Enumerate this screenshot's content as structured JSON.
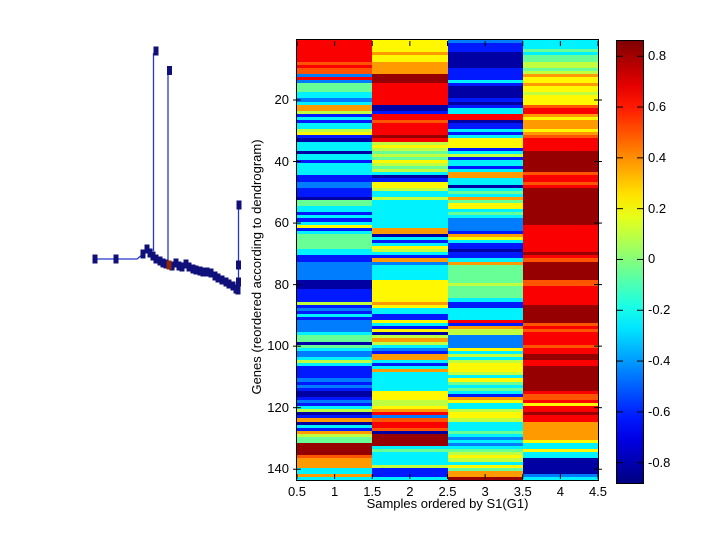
{
  "chart_data": {
    "type": "heatmap",
    "heatmap": {
      "xlabel": "Samples ordered by S1(G1)",
      "ylabel": "Genes (reordered according to dendrogram)",
      "x_ticks": [
        0.5,
        1,
        1.5,
        2,
        2.5,
        3,
        3.5,
        4,
        4.5
      ],
      "y_ticks": [
        20,
        40,
        60,
        80,
        100,
        120,
        140
      ],
      "n_rows": 143,
      "n_cols": 4,
      "colormap": "jet",
      "grid": false,
      "palette_codes": {
        "a": 0.82,
        "b": 0.65,
        "c": 0.5,
        "d": 0.38,
        "e": 0.22,
        "f": 0.1,
        "g": -0.05,
        "h": -0.25,
        "i": -0.45,
        "j": -0.62,
        "k": -0.82
      },
      "rows": [
        "beih",
        "bejh",
        "bejh",
        "bejg",
        "bdkh",
        "bekg",
        "bekg",
        "cdkf",
        "bdkf",
        "cdjg",
        "cdjf",
        "iajd",
        "baje",
        "iahe",
        "gbjd",
        "gbke",
        "gbke",
        "hbkf",
        "hbke",
        "ibje",
        "hbke",
        "dkjc",
        "dkhb",
        "fjhb",
        "jbbd",
        "hbbe",
        "jckd",
        "hbjd",
        "hbjd",
        "fbhe",
        "ebjd",
        "jahc",
        "kbeb",
        "hfeb",
        "heeb",
        "hfjb",
        "kgha",
        "hffa",
        "hgja",
        "jeha",
        "hfha",
        "hgja",
        "hfha",
        "hhdc",
        "jkdb",
        "jjhb",
        "iehc",
        "iekb",
        "jfha",
        "jhga",
        "jhha",
        "kfda",
        "ghga",
        "ghea",
        "hhea",
        "hhha",
        "jhga",
        "hhha",
        "jhia",
        "hhia",
        "ehib",
        "jdib",
        "hdjb",
        "gkdb",
        "gheb",
        "gjhb",
        "ghjb",
        "gejb",
        "hfkb",
        "hhja",
        "jjjb",
        "jdhc",
        "iida",
        "ihga",
        "ihga",
        "ihga",
        "ihga",
        "ihga",
        "kegc",
        "kefc",
        "kegb",
        "jegb",
        "jegb",
        "jegb",
        "jehb",
        "fdjb",
        "jeja",
        "ihha",
        "jhha",
        "hjha",
        "jjha",
        "ieba",
        "ihjc",
        "ijdb",
        "iefc",
        "hkfb",
        "gfib",
        "gdib",
        "kfib",
        "ghic",
        "hieb",
        "ijhb",
        "idfa",
        "hdha",
        "fhfb",
        "hjeb",
        "jhea",
        "jdea",
        "jhfa",
        "jhha",
        "ihea",
        "jhga",
        "ihha",
        "jhga",
        "kehb",
        "kejc",
        "jedc",
        "ifeb",
        "jfhe",
        "hehb",
        "fdfb",
        "kbea",
        "jieb",
        "dcfb",
        "kbhd",
        "hbhd",
        "jchd",
        "dkgd",
        "fahd",
        "gaid",
        "gahe",
        "aaih",
        "ahhh",
        "agge",
        "ahfh",
        "cheh",
        "dhfk",
        "dhhk",
        "dfek",
        "hjgk",
        "hjdk",
        "djdi",
        "hhah"
      ]
    },
    "colorbar": {
      "ticks": [
        0.8,
        0.6,
        0.4,
        0.2,
        0,
        -0.2,
        -0.4,
        -0.6,
        -0.8
      ],
      "range": [
        -0.88,
        0.86
      ],
      "position": "right"
    },
    "dendrogram": {
      "line_color": "#2438c8",
      "marker_color": "#10107a",
      "highlight_marker_color": "#8f2606",
      "backbone": [
        [
          95,
          259
        ],
        [
          137,
          259
        ],
        [
          143,
          254
        ],
        [
          147,
          249
        ],
        [
          150,
          253
        ],
        [
          153,
          256
        ],
        [
          156,
          259
        ],
        [
          160,
          261
        ],
        [
          163,
          263
        ],
        [
          166,
          264
        ],
        [
          169,
          265
        ],
        [
          172,
          266
        ],
        [
          176,
          263
        ],
        [
          179,
          266
        ],
        [
          182,
          267
        ],
        [
          186,
          264
        ],
        [
          189,
          267
        ],
        [
          193,
          269
        ],
        [
          196,
          270
        ],
        [
          200,
          271
        ],
        [
          203,
          272
        ],
        [
          207,
          272
        ],
        [
          211,
          273
        ],
        [
          215,
          276
        ],
        [
          218,
          278
        ],
        [
          222,
          280
        ],
        [
          226,
          282
        ],
        [
          229,
          284
        ],
        [
          233,
          286
        ],
        [
          236,
          289
        ],
        [
          238,
          290
        ]
      ],
      "spikes": [
        [
          153.5,
          251,
          153.5,
          53
        ],
        [
          168,
          264,
          168,
          72
        ],
        [
          238.5,
          290,
          238.5,
          207
        ]
      ],
      "markers": [
        [
          95,
          259
        ],
        [
          116,
          259
        ],
        [
          143,
          254
        ],
        [
          147,
          249
        ],
        [
          150,
          253
        ],
        [
          153,
          256
        ],
        [
          156,
          259
        ],
        [
          160,
          261
        ],
        [
          163,
          263
        ],
        [
          166,
          264
        ],
        [
          172,
          266
        ],
        [
          176,
          263
        ],
        [
          179,
          266
        ],
        [
          182,
          267
        ],
        [
          186,
          264
        ],
        [
          189,
          267
        ],
        [
          193,
          269
        ],
        [
          196,
          270
        ],
        [
          200,
          271
        ],
        [
          203,
          272
        ],
        [
          207,
          272
        ],
        [
          211,
          273
        ],
        [
          215,
          276
        ],
        [
          218,
          278
        ],
        [
          222,
          280
        ],
        [
          226,
          282
        ],
        [
          229,
          284
        ],
        [
          233,
          286
        ],
        [
          236,
          289
        ],
        [
          156,
          51
        ],
        [
          169.5,
          70.5
        ],
        [
          239,
          205
        ],
        [
          238.5,
          265
        ],
        [
          238.5,
          282
        ],
        [
          238,
          290
        ]
      ],
      "highlight_marker": [
        169,
        265
      ]
    }
  }
}
